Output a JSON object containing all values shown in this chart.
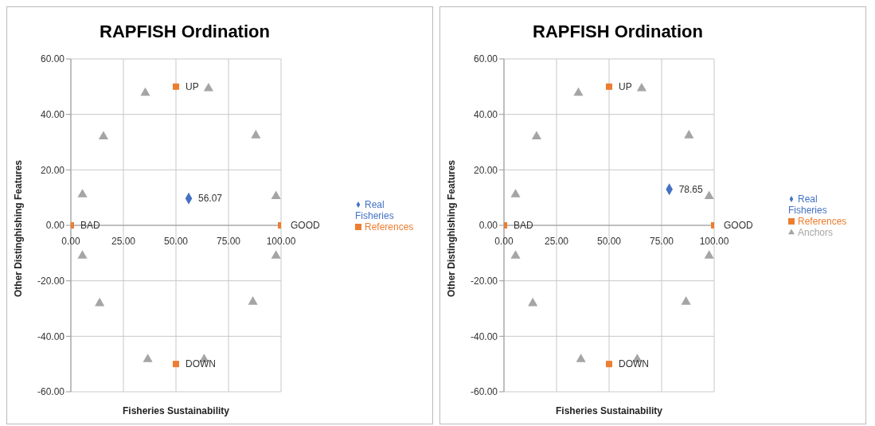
{
  "chart_data": [
    {
      "type": "scatter",
      "title": "RAPFISH Ordination",
      "xlabel": "Fisheries Sustainability",
      "ylabel": "Other Distinghishing Features",
      "xlim": [
        0,
        100
      ],
      "ylim": [
        -60,
        60
      ],
      "xticks": [
        {
          "value": 0,
          "label": "0.00"
        },
        {
          "value": 25,
          "label": "25.00"
        },
        {
          "value": 50,
          "label": "50.00"
        },
        {
          "value": 75,
          "label": "75.00"
        },
        {
          "value": 100,
          "label": "100.00"
        }
      ],
      "yticks": [
        {
          "value": -60,
          "label": "-60.00"
        },
        {
          "value": -40,
          "label": "-40.00"
        },
        {
          "value": -20,
          "label": "-20.00"
        },
        {
          "value": 0,
          "label": "0.00"
        },
        {
          "value": 20,
          "label": "20.00"
        },
        {
          "value": 40,
          "label": "40.00"
        },
        {
          "value": 60,
          "label": "60.00"
        }
      ],
      "grid": true,
      "legend": "right",
      "series": [
        {
          "name": "Real Fisheries",
          "color": "#4472c4",
          "marker": "diamond",
          "x": [
            56.07
          ],
          "values": [
            9.7
          ]
        },
        {
          "name": "References",
          "color": "#ed7d31",
          "marker": "square",
          "x": [
            0,
            100,
            50,
            50
          ],
          "values": [
            0,
            0,
            50,
            -50
          ]
        },
        {
          "color": "#a5a5a5",
          "marker": "triangle",
          "x": [
            5.5,
            15.5,
            35.4,
            65.5,
            88,
            97.6,
            97.6,
            86.6,
            63.4,
            36.6,
            13.7,
            5.5
          ],
          "values": [
            11.1,
            32,
            47.7,
            49.4,
            32.4,
            10.5,
            -11,
            -27.6,
            -48.3,
            -48.3,
            -28.1,
            -11
          ]
        }
      ],
      "annotations": [
        {
          "text": "56.07",
          "x": 56.07,
          "y": 9.7
        },
        {
          "text": "BAD",
          "x": 0,
          "y": 0
        },
        {
          "text": "GOOD",
          "x": 100,
          "y": 0
        },
        {
          "text": "UP",
          "x": 50,
          "y": 50
        },
        {
          "text": "DOWN",
          "x": 50,
          "y": -50
        }
      ]
    },
    {
      "type": "scatter",
      "title": "RAPFISH Ordination",
      "xlabel": "Fisheries Sustainability",
      "ylabel": "Other Distinghishing Features",
      "xlim": [
        0,
        100
      ],
      "ylim": [
        -60,
        60
      ],
      "xticks": [
        {
          "value": 0,
          "label": "0.00"
        },
        {
          "value": 25,
          "label": "25.00"
        },
        {
          "value": 50,
          "label": "50.00"
        },
        {
          "value": 75,
          "label": "75.00"
        },
        {
          "value": 100,
          "label": "100.00"
        }
      ],
      "yticks": [
        {
          "value": -60,
          "label": "-60.00"
        },
        {
          "value": -40,
          "label": "-40.00"
        },
        {
          "value": -20,
          "label": "-20.00"
        },
        {
          "value": 0,
          "label": "0.00"
        },
        {
          "value": 20,
          "label": "20.00"
        },
        {
          "value": 40,
          "label": "40.00"
        },
        {
          "value": 60,
          "label": "60.00"
        }
      ],
      "grid": true,
      "legend": "right",
      "series": [
        {
          "name": "Real Fisheries",
          "color": "#4472c4",
          "marker": "diamond",
          "x": [
            78.65
          ],
          "values": [
            13
          ]
        },
        {
          "name": "References",
          "color": "#ed7d31",
          "marker": "square",
          "x": [
            0,
            100,
            50,
            50
          ],
          "values": [
            0,
            0,
            50,
            -50
          ]
        },
        {
          "name": "Anchors",
          "color": "#a5a5a5",
          "marker": "triangle",
          "x": [
            5.5,
            15.5,
            35.4,
            65.5,
            88,
            97.6,
            97.6,
            86.6,
            63.4,
            36.6,
            13.7,
            5.5
          ],
          "values": [
            11.1,
            32,
            47.7,
            49.4,
            32.4,
            10.5,
            -11,
            -27.6,
            -48.3,
            -48.3,
            -28.1,
            -11
          ]
        }
      ],
      "annotations": [
        {
          "text": "78.65",
          "x": 78.65,
          "y": 13
        },
        {
          "text": "BAD",
          "x": 0,
          "y": 0
        },
        {
          "text": "GOOD",
          "x": 100,
          "y": 0
        },
        {
          "text": "UP",
          "x": 50,
          "y": 50
        },
        {
          "text": "DOWN",
          "x": 50,
          "y": -50
        }
      ]
    }
  ]
}
